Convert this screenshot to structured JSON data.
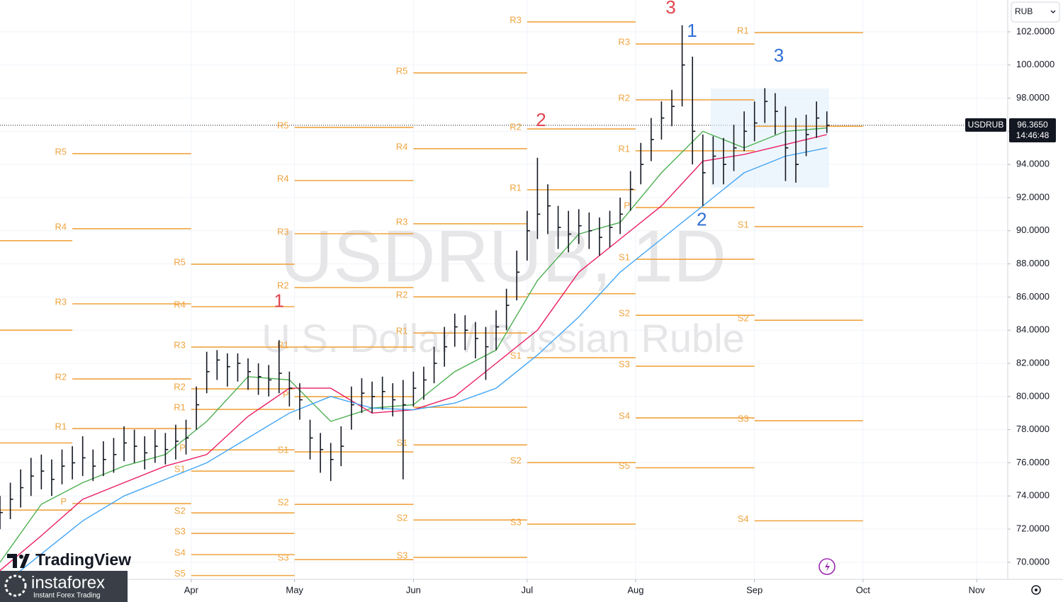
{
  "chart_data": {
    "type": "ohlc",
    "symbol": "USDRUB",
    "currency": "RUB",
    "watermark_title": "USDRUB, 1D",
    "watermark_subtitle": "U.S. Dollar / Russian Ruble",
    "last_price": {
      "value": 96.365,
      "label": "96.3650"
    },
    "countdown": "14:46:48",
    "color": "#131722",
    "grid": true,
    "xlim": [
      0,
      195
    ],
    "ylim": [
      68.97,
      103.92
    ],
    "xticks": [
      {
        "value": 37,
        "label": "Apr"
      },
      {
        "value": 57,
        "label": "May"
      },
      {
        "value": 80,
        "label": "Jun"
      },
      {
        "value": 102,
        "label": "Jul"
      },
      {
        "value": 123,
        "label": "Aug"
      },
      {
        "value": 146,
        "label": "Sep"
      },
      {
        "value": 167,
        "label": "Oct"
      },
      {
        "value": 189,
        "label": "Nov"
      }
    ],
    "yticks": [
      {
        "value": 70,
        "label": "70.0000"
      },
      {
        "value": 72,
        "label": "72.0000"
      },
      {
        "value": 74,
        "label": "74.0000"
      },
      {
        "value": 76,
        "label": "76.0000"
      },
      {
        "value": 78,
        "label": "78.0000"
      },
      {
        "value": 80,
        "label": "80.0000"
      },
      {
        "value": 82,
        "label": "82.0000"
      },
      {
        "value": 84,
        "label": "84.0000"
      },
      {
        "value": 86,
        "label": "86.0000"
      },
      {
        "value": 88,
        "label": "88.0000"
      },
      {
        "value": 90,
        "label": "90.0000"
      },
      {
        "value": 92,
        "label": "92.0000"
      },
      {
        "value": 94,
        "label": "94.0000"
      },
      {
        "value": 96,
        "label": "96.0000"
      },
      {
        "value": 98,
        "label": "98.0000"
      },
      {
        "value": 100,
        "label": "100.0000"
      },
      {
        "value": 102,
        "label": "102.0000"
      }
    ],
    "series": [
      {
        "x": [
          0,
          2,
          4,
          6,
          8,
          10,
          12,
          14,
          16,
          18,
          20,
          22,
          24,
          26,
          28,
          30,
          32,
          34,
          36,
          38,
          40,
          42,
          44,
          46,
          48,
          50,
          52,
          54,
          56,
          58,
          60,
          62,
          64,
          66,
          68,
          70,
          72,
          74,
          76,
          78,
          80,
          82,
          84,
          86,
          88,
          90,
          92,
          94,
          96,
          98,
          100,
          102,
          104,
          106,
          108,
          110,
          112,
          114,
          116,
          118,
          120,
          122,
          124,
          126,
          128,
          130,
          132,
          134,
          136,
          138,
          140,
          142,
          144,
          146,
          148,
          150,
          152,
          154,
          156,
          158,
          160
        ],
        "high": [
          74.0,
          74.8,
          75.6,
          76.3,
          76.5,
          76.2,
          76.8,
          77.0,
          77.6,
          76.8,
          77.3,
          77.5,
          78.2,
          78.0,
          77.6,
          78.0,
          77.8,
          78.3,
          78.6,
          80.6,
          82.7,
          82.8,
          82.6,
          82.6,
          82.3,
          82.0,
          81.9,
          83.4,
          81.5,
          80.8,
          78.6,
          77.8,
          77.2,
          78.2,
          80.6,
          81.1,
          80.9,
          81.2,
          80.8,
          81.0,
          81.5,
          81.8,
          83.0,
          84.2,
          85.0,
          84.9,
          84.5,
          84.2,
          85.2,
          86.5,
          88.8,
          91.2,
          94.4,
          92.8,
          91.5,
          91.2,
          91.3,
          91.1,
          90.8,
          91.2,
          92.0,
          93.6,
          95.3,
          96.8,
          97.8,
          98.5,
          102.4,
          100.5,
          95.8,
          95.7,
          95.6,
          96.4,
          97.2,
          97.8,
          98.6,
          98.3,
          97.5,
          96.8,
          97.0,
          97.8,
          97.2
        ],
        "low": [
          72.0,
          72.6,
          73.3,
          74.0,
          74.4,
          74.0,
          74.7,
          75.0,
          75.2,
          74.9,
          75.2,
          75.4,
          76.1,
          76.0,
          75.6,
          76.0,
          75.9,
          76.2,
          76.5,
          78.0,
          80.2,
          81.0,
          80.6,
          80.9,
          80.4,
          80.1,
          80.0,
          80.2,
          79.4,
          78.6,
          76.2,
          75.4,
          74.9,
          75.8,
          78.0,
          79.0,
          79.0,
          79.2,
          78.8,
          75.0,
          79.4,
          79.8,
          80.8,
          81.8,
          83.0,
          82.8,
          82.3,
          81.0,
          82.8,
          84.0,
          85.8,
          88.2,
          89.5,
          89.8,
          88.9,
          88.7,
          89.2,
          88.9,
          88.5,
          89.0,
          89.8,
          91.2,
          92.8,
          94.2,
          95.5,
          96.3,
          97.5,
          94.0,
          91.5,
          92.8,
          92.8,
          93.6,
          94.8,
          95.4,
          96.5,
          95.8,
          93.0,
          92.9,
          94.5,
          95.6,
          95.9
        ],
        "close": [
          73.0,
          73.8,
          74.5,
          75.2,
          75.5,
          75.0,
          75.8,
          76.0,
          76.3,
          75.8,
          76.2,
          76.5,
          77.2,
          77.0,
          76.6,
          77.0,
          76.8,
          77.3,
          77.5,
          79.5,
          81.5,
          82.2,
          81.8,
          82.0,
          81.5,
          81.2,
          81.0,
          81.4,
          80.5,
          79.8,
          77.5,
          76.8,
          76.2,
          77.0,
          79.5,
          80.2,
          80.0,
          80.3,
          79.8,
          79.5,
          80.5,
          81.0,
          82.0,
          83.0,
          84.2,
          84.0,
          83.5,
          83.0,
          84.2,
          85.5,
          87.5,
          90.0,
          91.0,
          91.5,
          90.2,
          89.8,
          90.3,
          90.0,
          89.6,
          90.2,
          91.0,
          92.5,
          94.0,
          95.5,
          96.8,
          97.5,
          100.0,
          96.0,
          93.5,
          94.5,
          94.0,
          95.0,
          96.0,
          96.5,
          97.8,
          97.2,
          95.0,
          94.0,
          95.8,
          96.8,
          96.365
        ]
      }
    ],
    "moving_averages": [
      {
        "color": "#4caf50",
        "x": [
          0,
          8,
          16,
          24,
          32,
          40,
          48,
          56,
          64,
          72,
          80,
          88,
          96,
          104,
          112,
          120,
          128,
          136,
          144,
          152,
          160
        ],
        "values": [
          70.0,
          73.5,
          74.8,
          75.8,
          76.5,
          78.5,
          81.2,
          81.0,
          78.5,
          79.3,
          79.5,
          81.5,
          82.8,
          87.0,
          89.8,
          90.5,
          93.5,
          96.0,
          95.0,
          96.0,
          96.2
        ]
      },
      {
        "color": "#e91e63",
        "x": [
          0,
          8,
          16,
          24,
          32,
          40,
          48,
          56,
          64,
          72,
          80,
          88,
          96,
          104,
          112,
          120,
          128,
          136,
          144,
          152,
          160
        ],
        "values": [
          69.5,
          71.6,
          73.8,
          74.8,
          75.8,
          76.5,
          78.8,
          80.5,
          80.5,
          79.0,
          79.2,
          80.0,
          82.0,
          84.0,
          87.5,
          89.5,
          91.5,
          94.2,
          94.6,
          95.2,
          95.8
        ]
      },
      {
        "color": "#42a5f5",
        "x": [
          0,
          8,
          16,
          24,
          32,
          40,
          48,
          56,
          64,
          72,
          80,
          88,
          96,
          104,
          112,
          120,
          128,
          136,
          144,
          152,
          160
        ],
        "values": [
          68.5,
          70.5,
          72.5,
          74.0,
          75.0,
          76.0,
          77.5,
          79.0,
          80.0,
          79.3,
          79.2,
          79.6,
          80.5,
          82.5,
          84.8,
          87.5,
          89.5,
          91.5,
          93.5,
          94.5,
          95.0
        ]
      }
    ],
    "level_color": "#f0a440",
    "levels": [
      {
        "value": 89.4,
        "x0": 0,
        "x1": 14
      },
      {
        "value": 84.0,
        "x0": 0,
        "x1": 14
      },
      {
        "value": 77.2,
        "x0": 0,
        "x1": 14
      },
      {
        "value": 73.15,
        "x0": 0,
        "x1": 14
      },
      {
        "label": "R5",
        "value": 94.65,
        "x0": 14,
        "x1": 37
      },
      {
        "label": "R4",
        "value": 90.12,
        "x0": 14,
        "x1": 37
      },
      {
        "label": "R3",
        "value": 85.59,
        "x0": 14,
        "x1": 37
      },
      {
        "label": "R2",
        "value": 81.06,
        "x0": 14,
        "x1": 37
      },
      {
        "label": "R1",
        "value": 78.07,
        "x0": 14,
        "x1": 37
      },
      {
        "label": "P",
        "value": 73.54,
        "x0": 14,
        "x1": 37
      },
      {
        "label": "R5",
        "value": 87.98,
        "x0": 37,
        "x1": 57
      },
      {
        "label": "R4",
        "value": 85.42,
        "x0": 37,
        "x1": 57
      },
      {
        "label": "R3",
        "value": 82.98,
        "x0": 37,
        "x1": 57
      },
      {
        "label": "R2",
        "value": 80.46,
        "x0": 37,
        "x1": 57
      },
      {
        "label": "R1",
        "value": 79.22,
        "x0": 37,
        "x1": 57
      },
      {
        "label": "P",
        "value": 76.78,
        "x0": 37,
        "x1": 57
      },
      {
        "label": "S1",
        "value": 75.5,
        "x0": 37,
        "x1": 57
      },
      {
        "label": "S2",
        "value": 72.98,
        "x0": 37,
        "x1": 57
      },
      {
        "label": "S3",
        "value": 71.74,
        "x0": 37,
        "x1": 57
      },
      {
        "label": "S4",
        "value": 70.46,
        "x0": 37,
        "x1": 57
      },
      {
        "label": "S5",
        "value": 69.2,
        "x0": 37,
        "x1": 57
      },
      {
        "label": "R5",
        "value": 96.23,
        "x0": 57,
        "x1": 80
      },
      {
        "label": "R4",
        "value": 93.03,
        "x0": 57,
        "x1": 80
      },
      {
        "label": "R3",
        "value": 89.82,
        "x0": 57,
        "x1": 80
      },
      {
        "label": "R2",
        "value": 86.57,
        "x0": 57,
        "x1": 80
      },
      {
        "label": "R1",
        "value": 82.98,
        "x0": 57,
        "x1": 80
      },
      {
        "label": "P",
        "value": 79.99,
        "x0": 57,
        "x1": 80
      },
      {
        "label": "S1",
        "value": 76.66,
        "x0": 57,
        "x1": 80
      },
      {
        "label": "S2",
        "value": 73.49,
        "x0": 57,
        "x1": 80
      },
      {
        "label": "S3",
        "value": 70.16,
        "x0": 57,
        "x1": 80
      },
      {
        "label": "R5",
        "value": 99.52,
        "x0": 80,
        "x1": 102
      },
      {
        "label": "R4",
        "value": 94.95,
        "x0": 80,
        "x1": 102
      },
      {
        "label": "R3",
        "value": 90.42,
        "x0": 80,
        "x1": 102
      },
      {
        "label": "R2",
        "value": 86.01,
        "x0": 80,
        "x1": 102
      },
      {
        "label": "R1",
        "value": 83.83,
        "x0": 80,
        "x1": 102
      },
      {
        "value": 79.35,
        "x0": 80,
        "x1": 102
      },
      {
        "label": "S1",
        "value": 77.08,
        "x0": 80,
        "x1": 102
      },
      {
        "label": "S2",
        "value": 72.55,
        "x0": 80,
        "x1": 102
      },
      {
        "label": "S3",
        "value": 70.29,
        "x0": 80,
        "x1": 102
      },
      {
        "label": "R3",
        "value": 102.6,
        "x0": 102,
        "x1": 123
      },
      {
        "label": "R2",
        "value": 96.14,
        "x0": 102,
        "x1": 123
      },
      {
        "label": "R1",
        "value": 92.47,
        "x0": 102,
        "x1": 123
      },
      {
        "value": 86.2,
        "x0": 102,
        "x1": 123
      },
      {
        "label": "S1",
        "value": 82.34,
        "x0": 102,
        "x1": 123
      },
      {
        "label": "S2",
        "value": 76.01,
        "x0": 102,
        "x1": 123
      },
      {
        "label": "S3",
        "value": 72.3,
        "x0": 102,
        "x1": 123
      },
      {
        "label": "R3",
        "value": 101.27,
        "x0": 123,
        "x1": 146
      },
      {
        "label": "R2",
        "value": 97.9,
        "x0": 123,
        "x1": 146
      },
      {
        "label": "R1",
        "value": 94.82,
        "x0": 123,
        "x1": 146
      },
      {
        "label": "P",
        "value": 91.4,
        "x0": 123,
        "x1": 146
      },
      {
        "label": "S1",
        "value": 88.28,
        "x0": 123,
        "x1": 146
      },
      {
        "label": "S2",
        "value": 84.9,
        "x0": 123,
        "x1": 146
      },
      {
        "label": "S3",
        "value": 81.83,
        "x0": 123,
        "x1": 146
      },
      {
        "label": "S4",
        "value": 78.71,
        "x0": 123,
        "x1": 146
      },
      {
        "label": "S5",
        "value": 75.7,
        "x0": 123,
        "x1": 146
      },
      {
        "label": "R1",
        "value": 101.95,
        "x0": 146,
        "x1": 167
      },
      {
        "value": 96.3,
        "x0": 146,
        "x1": 167
      },
      {
        "label": "S1",
        "value": 90.25,
        "x0": 146,
        "x1": 167
      },
      {
        "label": "S2",
        "value": 84.6,
        "x0": 146,
        "x1": 167
      },
      {
        "label": "S3",
        "value": 78.54,
        "x0": 146,
        "x1": 167
      },
      {
        "label": "S4",
        "value": 72.5,
        "x0": 146,
        "x1": 167
      }
    ],
    "annotations": [
      {
        "text": "1",
        "color": "#e0454f",
        "x": 54,
        "y": 85.7
      },
      {
        "text": "2",
        "color": "#e0454f",
        "x": 104.7,
        "y": 96.6
      },
      {
        "text": "3",
        "color": "#e0454f",
        "x": 129.8,
        "y": 103.4
      },
      {
        "text": "1",
        "color": "#2f6fd6",
        "x": 133.9,
        "y": 102.0
      },
      {
        "text": "2",
        "color": "#2f6fd6",
        "x": 135.8,
        "y": 90.6
      },
      {
        "text": "3",
        "color": "#2f6fd6",
        "x": 150.7,
        "y": 100.5
      }
    ]
  },
  "branding": {
    "tradingview": "TradingView",
    "instaforex": "instaforex",
    "tagline": "Instant Forex Trading"
  }
}
